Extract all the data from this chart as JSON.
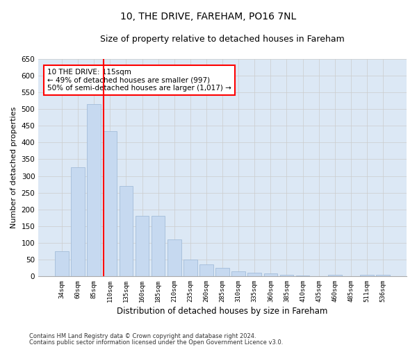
{
  "title": "10, THE DRIVE, FAREHAM, PO16 7NL",
  "subtitle": "Size of property relative to detached houses in Fareham",
  "xlabel": "Distribution of detached houses by size in Fareham",
  "ylabel": "Number of detached properties",
  "categories": [
    "34sqm",
    "60sqm",
    "85sqm",
    "110sqm",
    "135sqm",
    "160sqm",
    "185sqm",
    "210sqm",
    "235sqm",
    "260sqm",
    "285sqm",
    "310sqm",
    "335sqm",
    "360sqm",
    "385sqm",
    "410sqm",
    "435sqm",
    "460sqm",
    "485sqm",
    "511sqm",
    "536sqm"
  ],
  "values": [
    75,
    325,
    515,
    435,
    270,
    180,
    180,
    110,
    50,
    35,
    25,
    15,
    10,
    8,
    5,
    3,
    0,
    5,
    0,
    5,
    5
  ],
  "bar_color": "#c6d9f0",
  "bar_edgecolor": "#9ab5d5",
  "redline_index": 3,
  "annotation_text": "10 THE DRIVE: 115sqm\n← 49% of detached houses are smaller (997)\n50% of semi-detached houses are larger (1,017) →",
  "annotation_boxcolor": "white",
  "annotation_edgecolor": "red",
  "ylim": [
    0,
    650
  ],
  "yticks": [
    0,
    50,
    100,
    150,
    200,
    250,
    300,
    350,
    400,
    450,
    500,
    550,
    600,
    650
  ],
  "grid_color": "#cccccc",
  "background_color": "#dce8f5",
  "footer_line1": "Contains HM Land Registry data © Crown copyright and database right 2024.",
  "footer_line2": "Contains public sector information licensed under the Open Government Licence v3.0.",
  "title_fontsize": 10,
  "subtitle_fontsize": 9,
  "xlabel_fontsize": 8.5,
  "ylabel_fontsize": 8
}
